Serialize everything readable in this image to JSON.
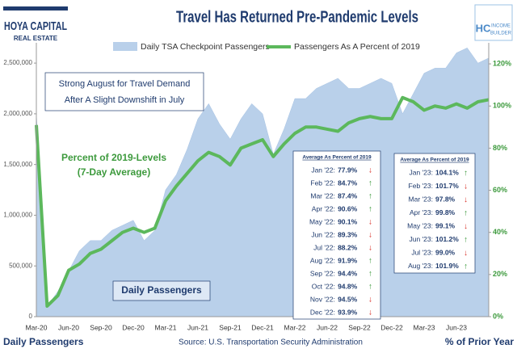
{
  "logo_left": {
    "name": "HOYA CAPITAL",
    "sub": "REAL ESTATE"
  },
  "logo_right": {
    "mark": "HC",
    "name": "INCOME",
    "sub": "BUILDER"
  },
  "chart_data": {
    "type": "combo",
    "title": "Travel Has Returned Pre-Pandemic Levels",
    "categories": [
      "Mar-20",
      null,
      null,
      "Jun-20",
      null,
      null,
      "Sep-20",
      null,
      null,
      "Dec-20",
      null,
      null,
      "Mar-21",
      null,
      null,
      "Jun-21",
      null,
      null,
      "Sep-21",
      null,
      null,
      "Dec-21",
      null,
      null,
      "Mar-22",
      null,
      null,
      "Jun-22",
      null,
      null,
      "Sep-22",
      null,
      null,
      "Dec-22",
      null,
      null,
      "Mar-23",
      null,
      null,
      "Jun-23",
      null,
      null,
      null
    ],
    "series": [
      {
        "name": "Daily TSA Checkpoint Passengers",
        "type": "area",
        "color": "#b9d0ea",
        "values": [
          2000000,
          100000,
          250000,
          450000,
          650000,
          750000,
          750000,
          850000,
          900000,
          950000,
          750000,
          850000,
          1250000,
          1400000,
          1650000,
          1950000,
          2100000,
          1900000,
          1750000,
          1950000,
          2100000,
          2000000,
          1600000,
          1850000,
          2150000,
          2150000,
          2250000,
          2300000,
          2350000,
          2250000,
          2250000,
          2300000,
          2350000,
          2300000,
          2000000,
          2200000,
          2400000,
          2450000,
          2450000,
          2600000,
          2650000,
          2500000,
          2550000
        ]
      },
      {
        "name": "Passengers As A Percent of 2019",
        "type": "line",
        "axis": "y2",
        "color": "#5cb85c",
        "values": [
          91,
          5,
          10,
          22,
          25,
          30,
          32,
          36,
          40,
          42,
          40,
          42,
          55,
          62,
          68,
          74,
          78,
          76,
          72,
          80,
          82,
          84,
          76,
          82,
          87,
          90,
          90,
          89,
          88,
          92,
          94,
          95,
          94,
          94,
          104,
          102,
          98,
          100,
          99,
          101,
          99,
          102,
          103
        ]
      }
    ],
    "ylim": [
      0,
      2700000
    ],
    "yticks": [
      0,
      {
        "value": 500000,
        "label": "500,000"
      },
      {
        "value": 1000000,
        "label": "1,000,000"
      },
      {
        "value": 1500000,
        "label": "1,500,000"
      },
      {
        "value": 2000000,
        "label": "2,000,000"
      },
      {
        "value": 2500000,
        "label": "2,500,000"
      }
    ],
    "y2lim": [
      0,
      130
    ],
    "y2ticks": [
      {
        "value": 0,
        "label": "0%"
      },
      {
        "value": 20,
        "label": "20%"
      },
      {
        "value": 40,
        "label": "40%"
      },
      {
        "value": 60,
        "label": "60%"
      },
      {
        "value": 80,
        "label": "80%"
      },
      {
        "value": 100,
        "label": "100%"
      },
      {
        "value": 120,
        "label": "120%"
      }
    ],
    "grid": false,
    "annotations": [
      "Strong August for Travel Demand",
      "After A Slight Downshift in July",
      "Percent of 2019-Levels",
      "(7-Day Average)",
      "Daily Passengers"
    ],
    "tables": [
      {
        "title": "Average As Percent of 2019",
        "rows": [
          [
            "Jan '22:",
            "77.9%",
            "↓"
          ],
          [
            "Feb '22:",
            "84.7%",
            "↑"
          ],
          [
            "Mar '22:",
            "87.4%",
            "↑"
          ],
          [
            "Apr '22:",
            "90.6%",
            "↑"
          ],
          [
            "May '22:",
            "90.1%",
            "↓"
          ],
          [
            "Jun '22:",
            "89.3%",
            "↓"
          ],
          [
            "Jul '22:",
            "88.2%",
            "↓"
          ],
          [
            "Aug '22:",
            "91.9%",
            "↑"
          ],
          [
            "Sep '22:",
            "94.4%",
            "↑"
          ],
          [
            "Oct '22:",
            "94.8%",
            "↑"
          ],
          [
            "Nov '22:",
            "94.5%",
            "↓"
          ],
          [
            "Dec '22:",
            "93.9%",
            "↓"
          ]
        ]
      },
      {
        "title": "Average As Percent of 2019",
        "rows": [
          [
            "Jan '23:",
            "104.1%",
            "↑"
          ],
          [
            "Feb '23:",
            "101.7%",
            "↓"
          ],
          [
            "Mar '23:",
            "97.8%",
            "↓"
          ],
          [
            "Apr '23:",
            "99.8%",
            "↑"
          ],
          [
            "May '23:",
            "99.1%",
            "↓"
          ],
          [
            "Jun '23:",
            "101.2%",
            "↑"
          ],
          [
            "Jul '23:",
            "99.0%",
            "↓"
          ],
          [
            "Aug '23:",
            "101.9%",
            "↑"
          ]
        ]
      }
    ],
    "footer_left": "Daily Passengers",
    "source": "Source: U.S. Transportation Security Administration",
    "footer_right": "% of Prior Year"
  }
}
